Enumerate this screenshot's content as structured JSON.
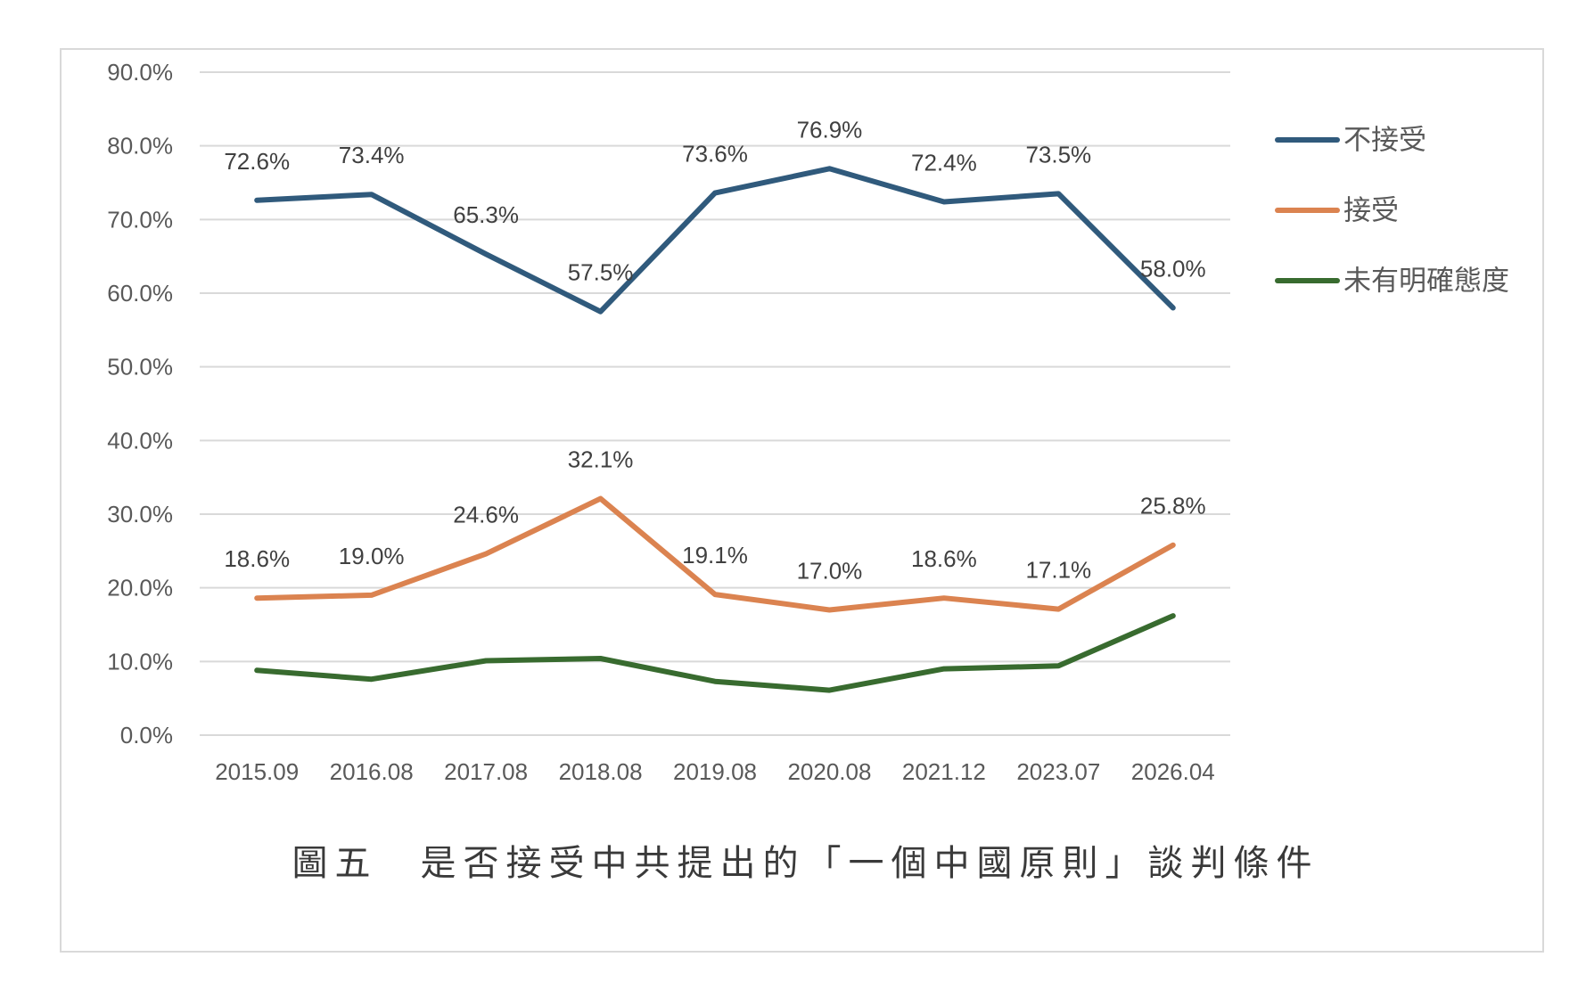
{
  "chart_data": {
    "type": "line",
    "caption": "圖五　是否接受中共提出的「一個中國原則」談判條件",
    "categories": [
      "2015.09",
      "2016.08",
      "2017.08",
      "2018.08",
      "2019.08",
      "2020.08",
      "2021.12",
      "2023.07",
      "2026.04"
    ],
    "ylim": [
      0,
      90
    ],
    "y_ticks": [
      {
        "value": 0,
        "label": "0.0%"
      },
      {
        "value": 10,
        "label": "10.0%"
      },
      {
        "value": 20,
        "label": "20.0%"
      },
      {
        "value": 30,
        "label": "30.0%"
      },
      {
        "value": 40,
        "label": "40.0%"
      },
      {
        "value": 50,
        "label": "50.0%"
      },
      {
        "value": 60,
        "label": "60.0%"
      },
      {
        "value": 70,
        "label": "70.0%"
      },
      {
        "value": 80,
        "label": "80.0%"
      },
      {
        "value": 90,
        "label": "90.0%"
      }
    ],
    "grid": "horizontal",
    "legend": "right",
    "data_labels": "above",
    "colors": {
      "gridline": "#D9D9D9",
      "frame": "#D9D9D9"
    },
    "series": [
      {
        "name": "不接受",
        "color": "#305A7C",
        "values": [
          72.6,
          73.4,
          65.3,
          57.5,
          73.6,
          76.9,
          72.4,
          73.5,
          58.0
        ],
        "labels": [
          "72.6%",
          "73.4%",
          "65.3%",
          "57.5%",
          "73.6%",
          "76.9%",
          "72.4%",
          "73.5%",
          "58.0%"
        ]
      },
      {
        "name": "接受",
        "color": "#DB8350",
        "values": [
          18.6,
          19.0,
          24.6,
          32.1,
          19.1,
          17.0,
          18.6,
          17.1,
          25.8
        ],
        "labels": [
          "18.6%",
          "19.0%",
          "24.6%",
          "32.1%",
          "19.1%",
          "17.0%",
          "18.6%",
          "17.1%",
          "25.8%"
        ]
      },
      {
        "name": "未有明確態度",
        "color": "#386B2F",
        "values": [
          8.8,
          7.6,
          10.1,
          10.4,
          7.3,
          6.1,
          9.0,
          9.4,
          16.2
        ]
      }
    ]
  }
}
